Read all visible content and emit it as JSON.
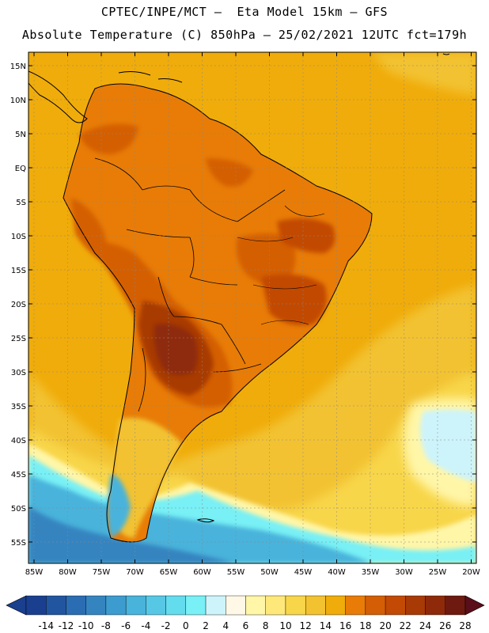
{
  "header": {
    "line1": "CPTEC/INPE/MCT –  Eta Model 15km – GFS",
    "line2": "Absolute Temperature (C) 850hPa – 25/02/2021 12UTC fct=179h"
  },
  "map": {
    "lat_labels": [
      "15N",
      "10N",
      "5N",
      "EQ",
      "5S",
      "10S",
      "15S",
      "20S",
      "25S",
      "30S",
      "35S",
      "40S",
      "45S",
      "50S",
      "55S"
    ],
    "lon_labels": [
      "85W",
      "80W",
      "75W",
      "70W",
      "65W",
      "60W",
      "55W",
      "50W",
      "45W",
      "40W",
      "35W",
      "30W",
      "25W",
      "20W"
    ]
  },
  "colorbar": {
    "labels": [
      "-14",
      "-12",
      "-10",
      "-8",
      "-6",
      "-4",
      "-2",
      "0",
      "2",
      "4",
      "6",
      "8",
      "10",
      "12",
      "14",
      "16",
      "18",
      "20",
      "22",
      "24",
      "26",
      "28"
    ],
    "colors": [
      "#1a3f8f",
      "#2255a0",
      "#2a6db3",
      "#3484c0",
      "#3d9ccf",
      "#48b3db",
      "#56c8e6",
      "#63dcee",
      "#78f0f5",
      "#cdf4fa",
      "#fff8e6",
      "#fff6a8",
      "#ffe87a",
      "#f8d64a",
      "#f2c230",
      "#f0ac0a",
      "#e87c06",
      "#d45e05",
      "#c24a04",
      "#a83a06",
      "#8e2a0a",
      "#6e1a10"
    ]
  }
}
